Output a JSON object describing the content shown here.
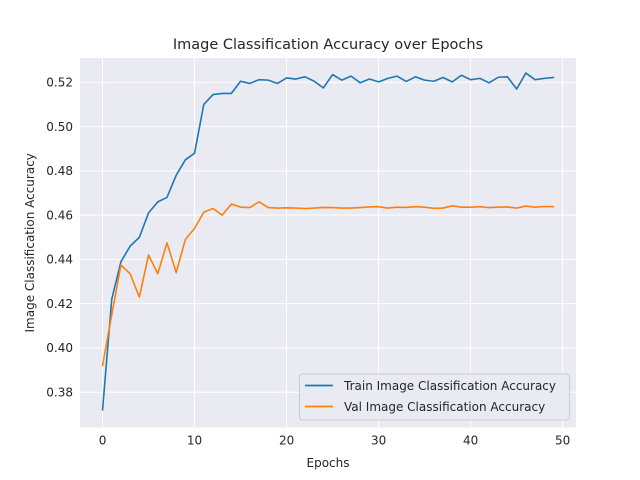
{
  "chart_data": {
    "type": "line",
    "title": "Image Classification Accuracy over Epochs",
    "xlabel": "Epochs",
    "ylabel": "Image Classification Accuracy",
    "xlim": [
      -2.45,
      51.45
    ],
    "ylim": [
      0.364,
      0.531
    ],
    "xticks": [
      0,
      10,
      20,
      30,
      40,
      50
    ],
    "yticks": [
      0.38,
      0.4,
      0.42,
      0.44,
      0.46,
      0.48,
      0.5,
      0.52
    ],
    "ytick_labels": [
      "0.38",
      "0.40",
      "0.42",
      "0.44",
      "0.46",
      "0.48",
      "0.50",
      "0.52"
    ],
    "grid": true,
    "background": "#eaeaf2",
    "legend_position": "lower-right",
    "x": [
      0,
      1,
      2,
      3,
      4,
      5,
      6,
      7,
      8,
      9,
      10,
      11,
      12,
      13,
      14,
      15,
      16,
      17,
      18,
      19,
      20,
      21,
      22,
      23,
      24,
      25,
      26,
      27,
      28,
      29,
      30,
      31,
      32,
      33,
      34,
      35,
      36,
      37,
      38,
      39,
      40,
      41,
      42,
      43,
      44,
      45,
      46,
      47,
      48,
      49
    ],
    "series": [
      {
        "name": "Train Image Classification Accuracy",
        "color": "#1f77b4",
        "values": [
          0.372,
          0.422,
          0.439,
          0.446,
          0.45,
          0.461,
          0.466,
          0.468,
          0.478,
          0.485,
          0.488,
          0.51,
          0.5145,
          0.515,
          0.515,
          0.5205,
          0.5195,
          0.5212,
          0.521,
          0.5195,
          0.522,
          0.5215,
          0.5225,
          0.5205,
          0.5175,
          0.5235,
          0.521,
          0.5228,
          0.5198,
          0.5215,
          0.5202,
          0.5218,
          0.5228,
          0.5204,
          0.5225,
          0.521,
          0.5205,
          0.5222,
          0.5202,
          0.5232,
          0.5212,
          0.5218,
          0.5198,
          0.5223,
          0.5225,
          0.517,
          0.5242,
          0.5212,
          0.5218,
          0.5222
        ]
      },
      {
        "name": "Val Image Classification Accuracy",
        "color": "#ff7f0e",
        "values": [
          0.392,
          0.415,
          0.4375,
          0.4335,
          0.423,
          0.442,
          0.4335,
          0.4475,
          0.434,
          0.449,
          0.454,
          0.4613,
          0.463,
          0.46,
          0.465,
          0.4636,
          0.4634,
          0.466,
          0.4634,
          0.4632,
          0.4633,
          0.4632,
          0.463,
          0.4632,
          0.4635,
          0.4634,
          0.4632,
          0.4632,
          0.4634,
          0.4637,
          0.4638,
          0.4632,
          0.4636,
          0.4635,
          0.4638,
          0.4636,
          0.4631,
          0.4632,
          0.4642,
          0.4636,
          0.4636,
          0.4638,
          0.4634,
          0.4636,
          0.4637,
          0.4632,
          0.4641,
          0.4636,
          0.4639,
          0.4638
        ]
      }
    ]
  }
}
